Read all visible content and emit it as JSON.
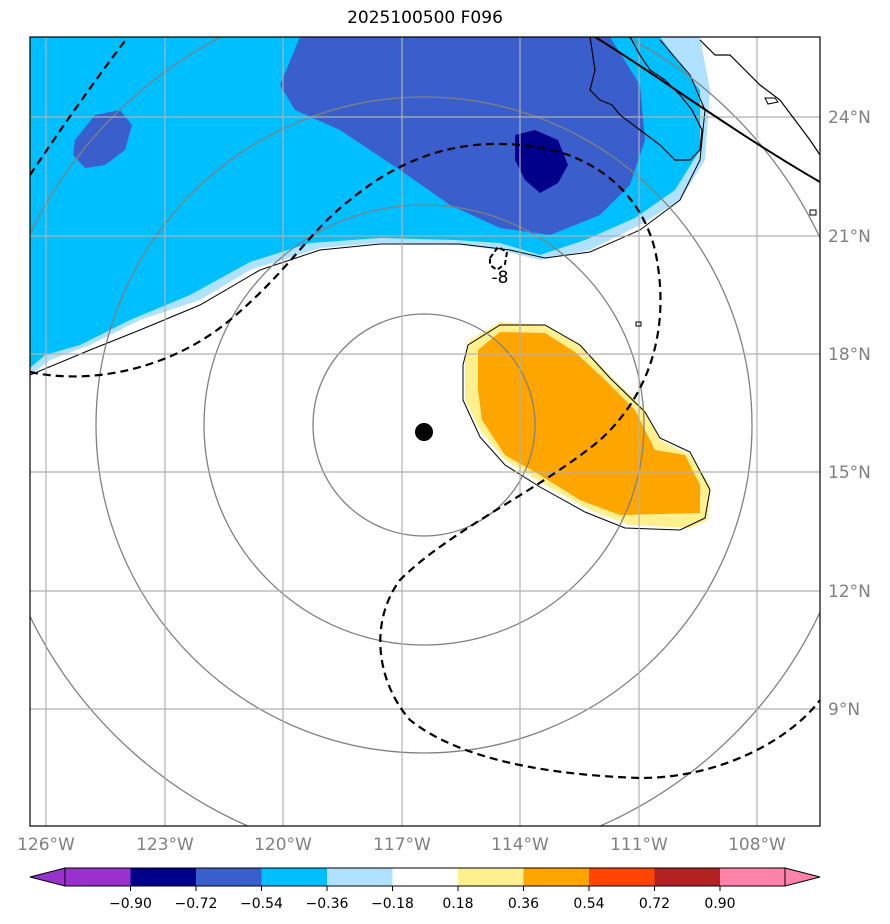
{
  "title": "2025100500 F096",
  "center_marker": {
    "lon": -116.5,
    "lat": 16.0
  },
  "contour_label": "-8",
  "lat_labels": [
    "24°N",
    "21°N",
    "18°N",
    "15°N",
    "12°N",
    "9°N"
  ],
  "lon_labels": [
    "126°W",
    "123°W",
    "120°W",
    "117°W",
    "114°W",
    "111°W",
    "108°W"
  ],
  "colorbar": {
    "ticks": [
      "−0.90",
      "−0.72",
      "−0.54",
      "−0.36",
      "−0.18",
      "0.18",
      "0.36",
      "0.54",
      "0.72",
      "0.90"
    ],
    "colors": [
      "#9932cc",
      "#00008b",
      "#3a5fcd",
      "#00bfff",
      "#b0e2ff",
      "#ffffff",
      "#fff08f",
      "#ffa500",
      "#ff4500",
      "#b22222",
      "#ff82ab"
    ]
  }
}
